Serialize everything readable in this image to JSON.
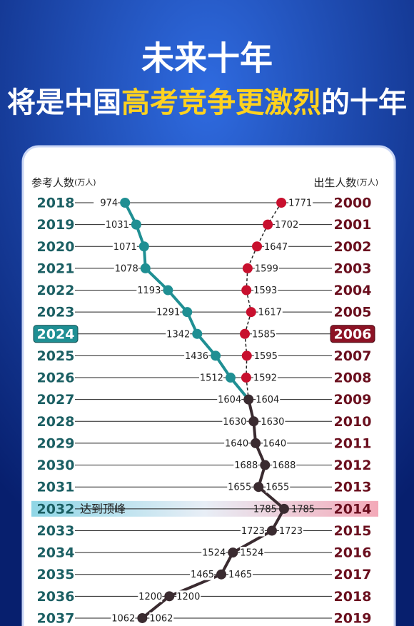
{
  "chart_data": {
    "type": "dual-dot-line",
    "title": "未来十年",
    "subtitle_parts": [
      "将是中国",
      "高考竞争更激烈",
      "的十年"
    ],
    "left_categories": [
      "2018",
      "2019",
      "2020",
      "2021",
      "2022",
      "2023",
      "2024",
      "2025",
      "2026",
      "2027",
      "2028",
      "2029",
      "2030",
      "2031",
      "2032",
      "2033",
      "2034",
      "2035",
      "2036",
      "2037"
    ],
    "right_categories": [
      "2000",
      "2001",
      "2002",
      "2003",
      "2004",
      "2005",
      "2006",
      "2007",
      "2008",
      "2009",
      "2010",
      "2011",
      "2012",
      "2013",
      "2014",
      "2015",
      "2016",
      "2017",
      "2018",
      "2019"
    ],
    "series": [
      {
        "name": "参考人数",
        "unit": "(万人)",
        "color": "#1f8f93",
        "values": [
          974,
          1031,
          1071,
          1078,
          1193,
          1291,
          1342,
          1436,
          1512,
          1604,
          1630,
          1640,
          1688,
          1655,
          1785,
          1723,
          1524,
          1465,
          1200,
          1062
        ]
      },
      {
        "name": "出生人数",
        "unit": "(万人)",
        "color": "#c8102e",
        "values": [
          1771,
          1702,
          1647,
          1599,
          1593,
          1617,
          1585,
          1595,
          1592,
          1604,
          1630,
          1640,
          1688,
          1655,
          1785,
          1723,
          1524,
          1465,
          1200,
          1062
        ]
      }
    ],
    "merged_color": "#3a2b30",
    "xlim": [
      500,
      2000
    ],
    "highlight_row": 6,
    "annotation": {
      "row": 14,
      "text": "达到顶峰"
    }
  }
}
